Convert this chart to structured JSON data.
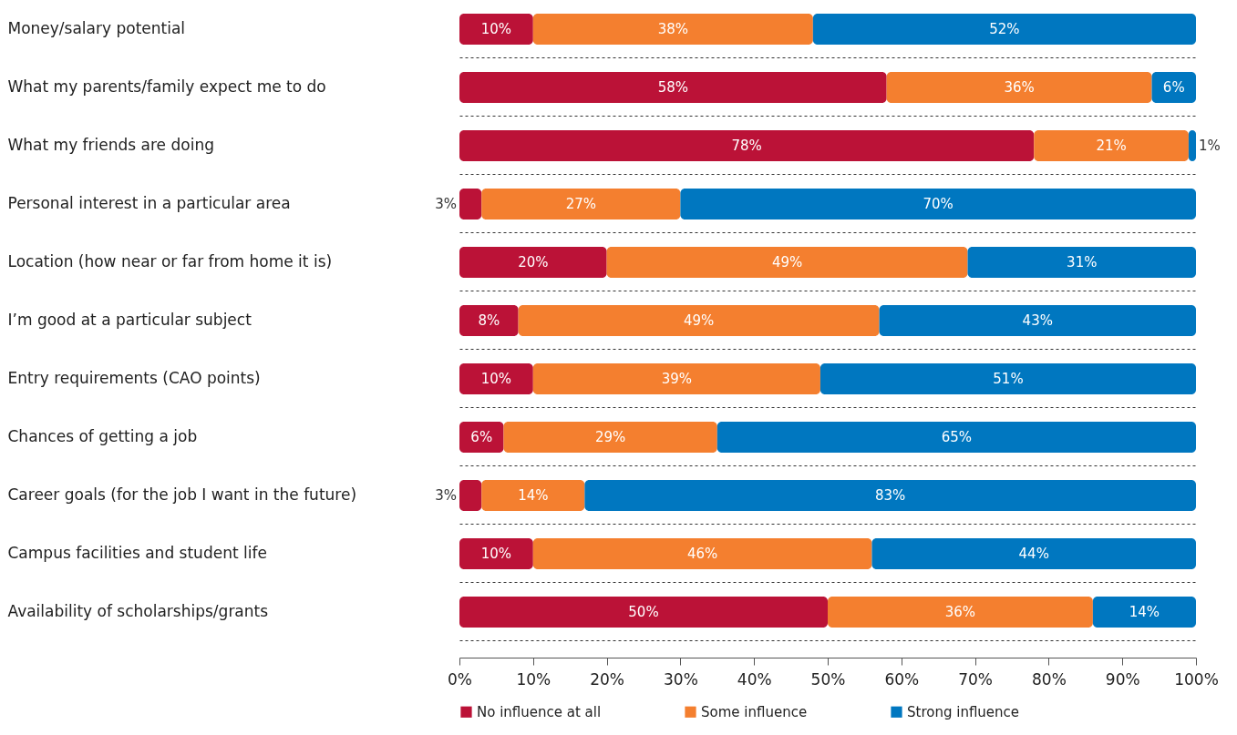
{
  "chart_data": {
    "type": "bar",
    "orientation": "horizontal",
    "stacked": true,
    "categories": [
      "Money/salary potential",
      "What my parents/family expect me to do",
      "What my friends are doing",
      "Personal interest in a particular area",
      "Location (how near or far from home it is)",
      "I’m good at a particular subject",
      "Entry requirements (CAO points)",
      "Chances of getting a job",
      "Career goals (for the job I want in the future)",
      "Campus facilities and student life",
      "Availability of scholarships/grants"
    ],
    "series": [
      {
        "name": "No influence at all",
        "color": "#bb1237",
        "values": [
          10,
          58,
          78,
          3,
          20,
          8,
          10,
          6,
          3,
          10,
          50
        ],
        "value_labels": [
          "10%",
          "58%",
          "78%",
          "3%",
          "20%",
          "8%",
          "10%",
          "6%",
          "3%",
          "10%",
          "50%"
        ]
      },
      {
        "name": "Some influence",
        "color": "#f47f2f",
        "values": [
          38,
          36,
          21,
          27,
          49,
          49,
          39,
          29,
          14,
          46,
          36
        ],
        "value_labels": [
          "38%",
          "36%",
          "21%",
          "27%",
          "49%",
          "49%",
          "39%",
          "29%",
          "14%",
          "46%",
          "36%"
        ]
      },
      {
        "name": "Strong influence",
        "color": "#0077c0",
        "values": [
          52,
          6,
          1,
          70,
          31,
          43,
          51,
          65,
          83,
          44,
          14
        ],
        "value_labels": [
          "52%",
          "6%",
          "1%",
          "70%",
          "31%",
          "43%",
          "51%",
          "65%",
          "83%",
          "44%",
          "14%"
        ]
      }
    ],
    "xlim": [
      0,
      100
    ],
    "xticks": [
      {
        "value": 0,
        "label": "0%"
      },
      {
        "value": 10,
        "label": "10%"
      },
      {
        "value": 20,
        "label": "20%"
      },
      {
        "value": 30,
        "label": "30%"
      },
      {
        "value": 40,
        "label": "40%"
      },
      {
        "value": 50,
        "label": "50%"
      },
      {
        "value": 60,
        "label": "60%"
      },
      {
        "value": 70,
        "label": "70%"
      },
      {
        "value": 80,
        "label": "80%"
      },
      {
        "value": 90,
        "label": "90%"
      },
      {
        "value": 100,
        "label": "100%"
      }
    ],
    "grid": "y",
    "legend": "bottom"
  }
}
